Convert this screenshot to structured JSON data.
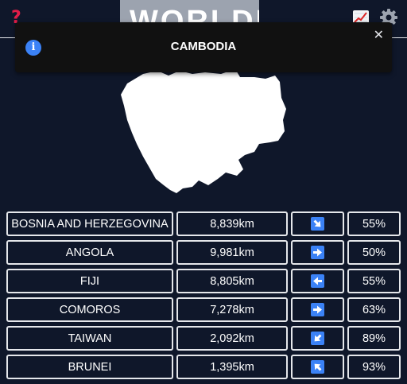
{
  "header": {
    "help_icon": "question-icon",
    "logo_text": "WORLDLE",
    "stats_icon": "chart-icon",
    "settings_icon": "gear-icon"
  },
  "toast": {
    "icon": "info-icon",
    "message": "CAMBODIA",
    "close_icon": "close-icon"
  },
  "guesses": [
    {
      "country": "BOSNIA AND HERZEGOVINA",
      "distance": "8,839km",
      "direction": "SE",
      "proximity": "55%"
    },
    {
      "country": "ANGOLA",
      "distance": "9,981km",
      "direction": "E",
      "proximity": "50%"
    },
    {
      "country": "FIJI",
      "distance": "8,805km",
      "direction": "W",
      "proximity": "55%"
    },
    {
      "country": "COMOROS",
      "distance": "7,278km",
      "direction": "E",
      "proximity": "63%"
    },
    {
      "country": "TAIWAN",
      "distance": "2,092km",
      "direction": "SW",
      "proximity": "89%"
    },
    {
      "country": "BRUNEI",
      "distance": "1,395km",
      "direction": "NW",
      "proximity": "93%"
    }
  ],
  "colors": {
    "background": "#0f172a",
    "toast_background": "#111111",
    "accent": "#3b82f6",
    "help": "#e11d48"
  }
}
